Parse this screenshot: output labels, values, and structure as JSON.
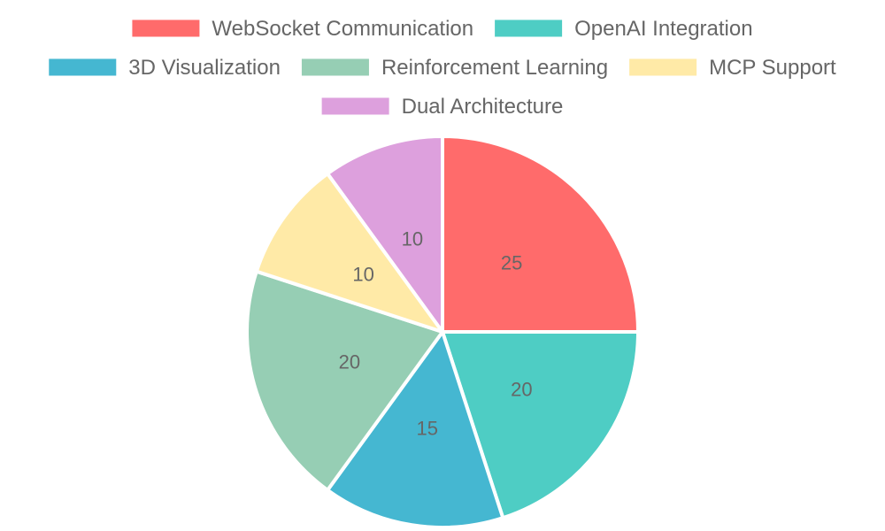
{
  "chart_data": {
    "type": "pie",
    "categories": [
      "WebSocket Communication",
      "OpenAI Integration",
      "3D Visualization",
      "Reinforcement Learning",
      "MCP Support",
      "Dual Architecture"
    ],
    "values": [
      25,
      20,
      15,
      20,
      10,
      10
    ],
    "colors": [
      "#FF6B6B",
      "#4ECDC4",
      "#45B7D1",
      "#96CEB4",
      "#FFEAA7",
      "#DDA0DD"
    ],
    "legend_position": "top",
    "title": ""
  }
}
